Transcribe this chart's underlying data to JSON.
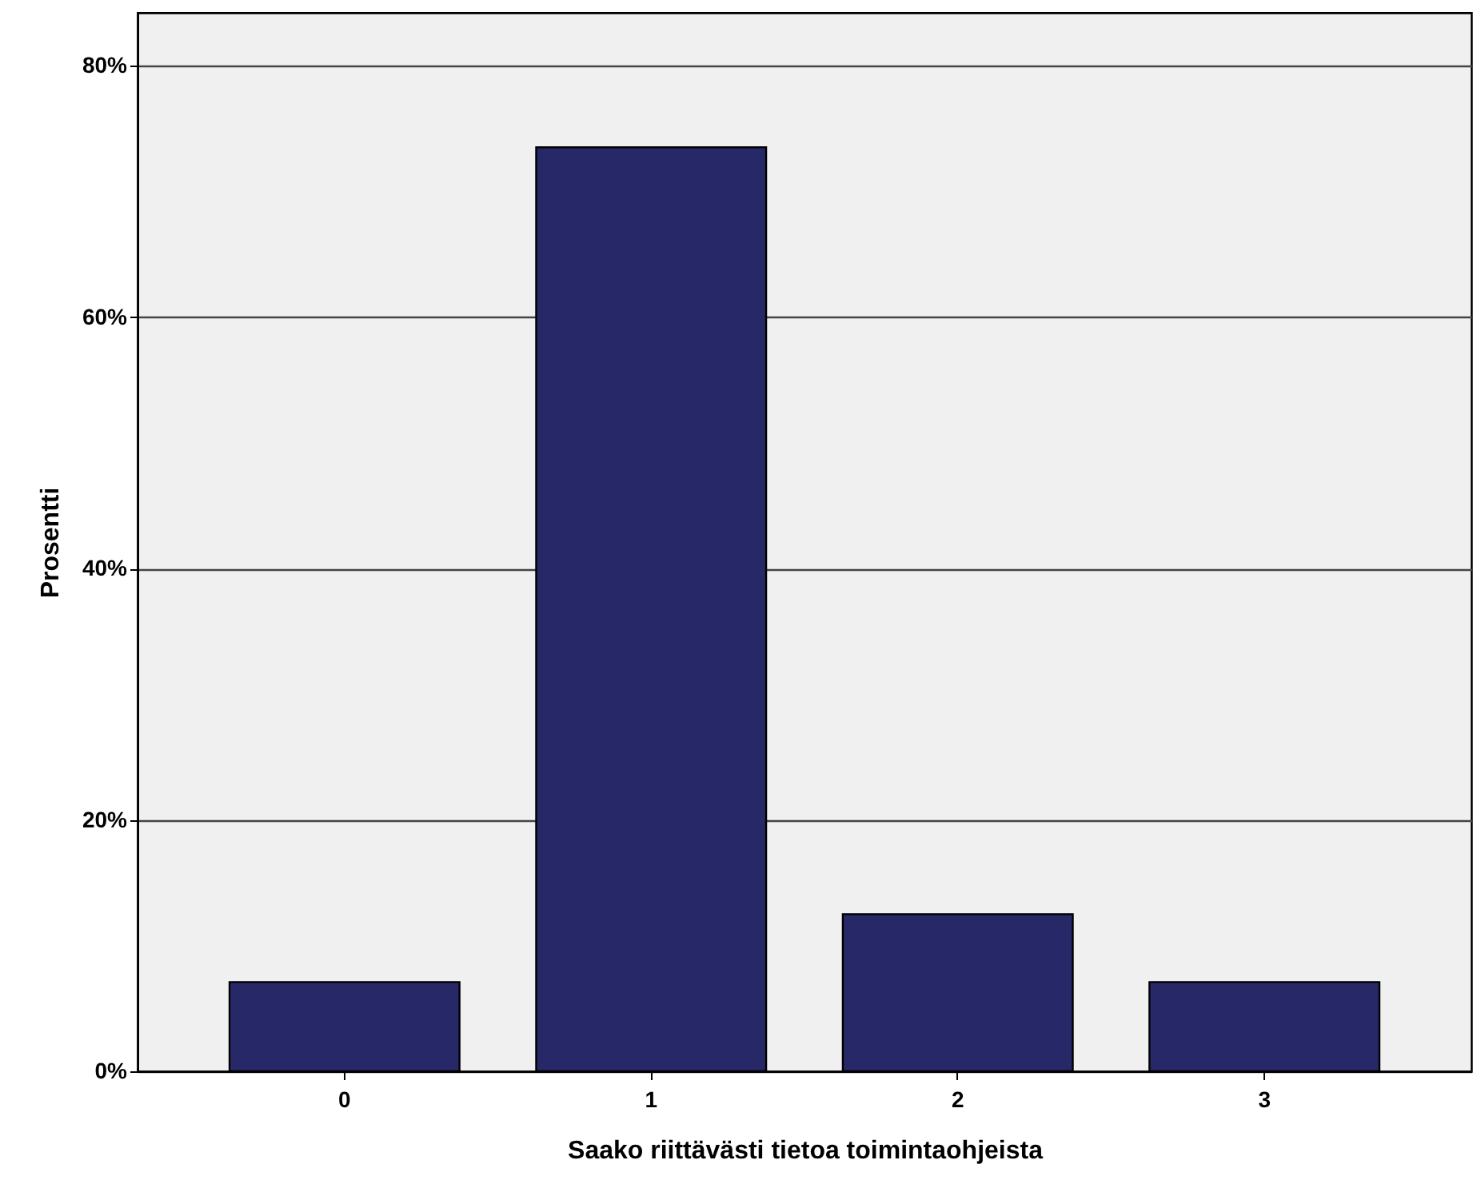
{
  "chart_data": {
    "type": "bar",
    "xlabel": "Saako riittävästi tietoa toimintaohjeista",
    "ylabel": "Prosentti",
    "categories": [
      "0",
      "1",
      "2",
      "3"
    ],
    "values": [
      7.1,
      73.5,
      12.5,
      7.1
    ],
    "color": "#262868",
    "ylim": [
      0,
      84.2
    ],
    "yticks": [
      {
        "value": 0,
        "label": "0%"
      },
      {
        "value": 20,
        "label": "20%"
      },
      {
        "value": 40,
        "label": "40%"
      },
      {
        "value": 60,
        "label": "60%"
      },
      {
        "value": 80,
        "label": "80%"
      }
    ],
    "grid": "y"
  }
}
